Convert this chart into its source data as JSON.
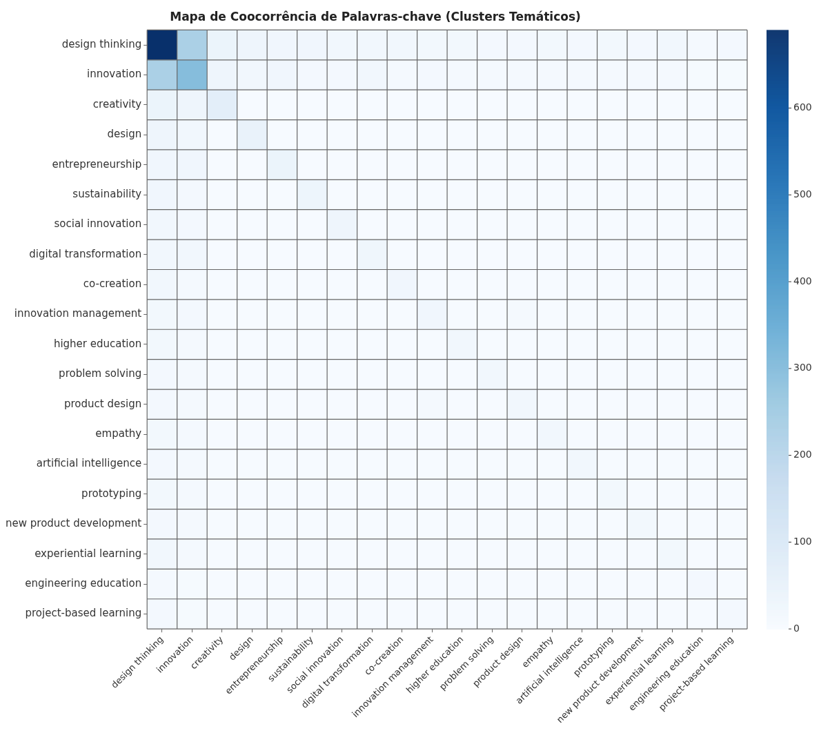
{
  "chart_data": {
    "type": "heatmap",
    "title": "Mapa de Coocorrência de Palavras-chave (Clusters Temáticos)",
    "categories": [
      "design thinking",
      "innovation",
      "creativity",
      "design",
      "entrepreneurship",
      "sustainability",
      "social innovation",
      "digital transformation",
      "co-creation",
      "innovation management",
      "higher education",
      "problem solving",
      "product design",
      "empathy",
      "artificial intelligence",
      "prototyping",
      "new product development",
      "experiential learning",
      "engineering education",
      "project-based learning"
    ],
    "y_categories": [
      "design thinking",
      "innovation",
      "creativity",
      "design",
      "entrepreneurship",
      "sustainability",
      "social innovation",
      "digital transformation",
      "co-creation",
      "innovation management",
      "higher education",
      "problem solving",
      "product design",
      "empathy",
      "artificial intelligence",
      "prototyping",
      "new product development",
      "experiential learning",
      "engineering education",
      "project-based learning"
    ],
    "cells": [
      [
        690,
        230,
        40,
        30,
        25,
        25,
        20,
        20,
        22,
        18,
        18,
        15,
        15,
        18,
        15,
        18,
        15,
        20,
        12,
        15
      ],
      [
        230,
        300,
        30,
        20,
        25,
        15,
        15,
        20,
        12,
        15,
        12,
        10,
        10,
        10,
        12,
        10,
        12,
        10,
        8,
        8
      ],
      [
        40,
        30,
        70,
        4,
        4,
        4,
        4,
        4,
        4,
        4,
        4,
        4,
        4,
        4,
        4,
        4,
        4,
        4,
        4,
        4
      ],
      [
        30,
        20,
        4,
        50,
        4,
        4,
        4,
        4,
        4,
        4,
        4,
        4,
        4,
        4,
        4,
        4,
        4,
        4,
        4,
        4
      ],
      [
        25,
        25,
        4,
        4,
        40,
        4,
        4,
        4,
        4,
        4,
        4,
        4,
        4,
        4,
        4,
        4,
        4,
        4,
        4,
        4
      ],
      [
        25,
        15,
        4,
        4,
        4,
        35,
        4,
        4,
        4,
        4,
        4,
        4,
        4,
        4,
        4,
        4,
        4,
        4,
        4,
        4
      ],
      [
        20,
        15,
        4,
        4,
        4,
        4,
        30,
        4,
        4,
        4,
        4,
        4,
        4,
        4,
        4,
        4,
        4,
        4,
        4,
        4
      ],
      [
        20,
        20,
        4,
        4,
        4,
        4,
        4,
        28,
        4,
        4,
        4,
        4,
        4,
        4,
        4,
        4,
        4,
        4,
        4,
        4
      ],
      [
        22,
        12,
        4,
        4,
        4,
        4,
        4,
        4,
        25,
        4,
        4,
        4,
        4,
        4,
        4,
        4,
        4,
        4,
        4,
        4
      ],
      [
        18,
        15,
        4,
        4,
        4,
        4,
        4,
        4,
        4,
        25,
        4,
        4,
        12,
        4,
        4,
        4,
        4,
        4,
        4,
        4
      ],
      [
        18,
        12,
        4,
        4,
        4,
        4,
        4,
        4,
        4,
        4,
        22,
        4,
        4,
        4,
        4,
        4,
        4,
        4,
        4,
        4
      ],
      [
        15,
        10,
        4,
        4,
        4,
        4,
        4,
        4,
        4,
        4,
        4,
        22,
        4,
        4,
        4,
        4,
        4,
        4,
        4,
        4
      ],
      [
        15,
        10,
        4,
        4,
        4,
        4,
        4,
        4,
        4,
        12,
        4,
        4,
        20,
        4,
        4,
        4,
        4,
        4,
        4,
        4
      ],
      [
        18,
        10,
        4,
        4,
        4,
        4,
        4,
        4,
        4,
        4,
        4,
        4,
        4,
        20,
        4,
        4,
        4,
        4,
        4,
        4
      ],
      [
        15,
        12,
        4,
        4,
        4,
        4,
        4,
        4,
        4,
        4,
        4,
        4,
        4,
        4,
        20,
        4,
        4,
        4,
        4,
        4
      ],
      [
        18,
        10,
        4,
        4,
        4,
        4,
        4,
        4,
        4,
        4,
        4,
        4,
        4,
        4,
        4,
        18,
        4,
        4,
        4,
        4
      ],
      [
        15,
        12,
        4,
        4,
        4,
        4,
        4,
        4,
        4,
        4,
        4,
        4,
        4,
        4,
        4,
        4,
        18,
        4,
        4,
        4
      ],
      [
        20,
        10,
        4,
        4,
        4,
        4,
        4,
        4,
        4,
        4,
        4,
        4,
        4,
        4,
        4,
        4,
        4,
        18,
        4,
        4
      ],
      [
        12,
        8,
        4,
        4,
        4,
        4,
        4,
        4,
        4,
        4,
        4,
        4,
        4,
        4,
        4,
        4,
        4,
        4,
        15,
        4
      ],
      [
        15,
        8,
        4,
        4,
        4,
        4,
        4,
        4,
        4,
        4,
        4,
        4,
        4,
        4,
        4,
        4,
        4,
        4,
        4,
        15
      ]
    ],
    "clim": [
      0,
      690
    ],
    "cticks": [
      0,
      100,
      200,
      300,
      400,
      500,
      600
    ]
  }
}
